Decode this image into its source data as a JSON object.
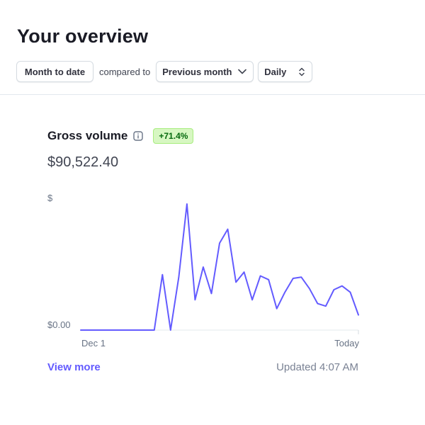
{
  "header": {
    "title": "Your overview"
  },
  "filters": {
    "range_label": "Month to date",
    "compare_text": "compared to",
    "compare_label": "Previous month",
    "interval_label": "Daily"
  },
  "metric": {
    "label": "Gross volume",
    "info_icon": "info-icon",
    "change_badge": "+71.4%",
    "badge_colors": {
      "bg": "#d7f7c2",
      "border": "#a8ed7f",
      "text": "#05690d"
    },
    "amount": "$90,522.40"
  },
  "chart_data": {
    "type": "line",
    "color": "#635bff",
    "y_tick_labels": [
      "$0.00",
      "$"
    ],
    "x_tick_labels": [
      "Dec 1",
      "Today"
    ],
    "ylim": [
      0,
      100
    ],
    "grid": false,
    "series": [
      {
        "values": [
          0,
          0,
          0,
          0,
          0,
          0,
          0,
          0,
          0,
          0,
          44,
          0,
          42,
          100,
          24,
          50,
          29,
          69,
          80,
          38,
          46,
          24,
          43,
          40,
          17,
          30,
          41,
          42,
          33,
          21,
          19,
          32,
          35,
          30,
          12
        ]
      }
    ]
  },
  "footer": {
    "view_more": "View more",
    "updated": "Updated 4:07 AM"
  }
}
